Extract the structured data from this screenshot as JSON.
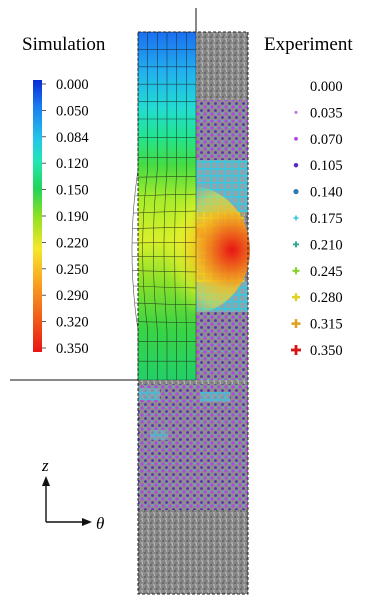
{
  "titles": {
    "left": "Simulation",
    "right": "Experiment"
  },
  "simulation_legend": {
    "labels": [
      "0.000",
      "0.050",
      "0.084",
      "0.120",
      "0.150",
      "0.190",
      "0.220",
      "0.250",
      "0.290",
      "0.320",
      "0.350"
    ],
    "colormap": [
      "#0a2bd6",
      "#1a7ef0",
      "#22c8e8",
      "#22e6b0",
      "#22d45a",
      "#55e022",
      "#c8f02a",
      "#f6e82a",
      "#f8a020",
      "#f05a1a",
      "#e81414"
    ]
  },
  "experiment_legend": {
    "entries": [
      {
        "label": "0.000",
        "color": "#ffffff",
        "marker": "none"
      },
      {
        "label": "0.035",
        "color": "#c07ad8",
        "marker": "dot"
      },
      {
        "label": "0.070",
        "color": "#b048e0",
        "marker": "dot"
      },
      {
        "label": "0.105",
        "color": "#5a2bb8",
        "marker": "dot"
      },
      {
        "label": "0.140",
        "color": "#2a7ab8",
        "marker": "dot"
      },
      {
        "label": "0.175",
        "color": "#38c8e0",
        "marker": "cross"
      },
      {
        "label": "0.210",
        "color": "#2aa890",
        "marker": "cross"
      },
      {
        "label": "0.245",
        "color": "#88d02a",
        "marker": "cross"
      },
      {
        "label": "0.280",
        "color": "#e0d020",
        "marker": "cross"
      },
      {
        "label": "0.315",
        "color": "#e0a020",
        "marker": "cross"
      },
      {
        "label": "0.350",
        "color": "#d81818",
        "marker": "cross"
      }
    ]
  },
  "axes": {
    "vertical": "z",
    "horizontal": "θ"
  }
}
